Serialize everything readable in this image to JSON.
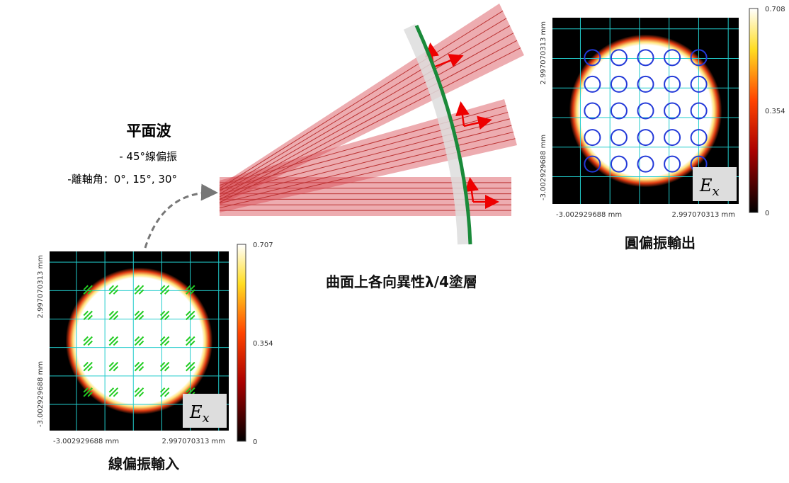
{
  "source": {
    "title": "平面波",
    "lines": [
      "- 45°線偏振",
      "-離軸角：0°, 15°, 30°"
    ]
  },
  "coating_label": "曲面上各向異性λ/4塗層",
  "input_plot": {
    "caption": "線偏振輸入",
    "x_labels": [
      "-3.002929688 mm",
      "2.997070313 mm"
    ],
    "y_labels": [
      "-3.002929688 mm",
      "2.997070313 mm"
    ],
    "colorbar_ticks": [
      "0.707",
      "0.354",
      "0"
    ],
    "field_label": "E",
    "field_sub": "x"
  },
  "output_plot": {
    "caption": "圓偏振輸出",
    "x_labels": [
      "-3.002929688 mm",
      "2.997070313 mm"
    ],
    "y_labels": [
      "-3.002929688 mm",
      "2.997070313 mm"
    ],
    "colorbar_ticks": [
      "0.708",
      "0.354",
      "0"
    ],
    "field_label": "E",
    "field_sub": "x"
  }
}
